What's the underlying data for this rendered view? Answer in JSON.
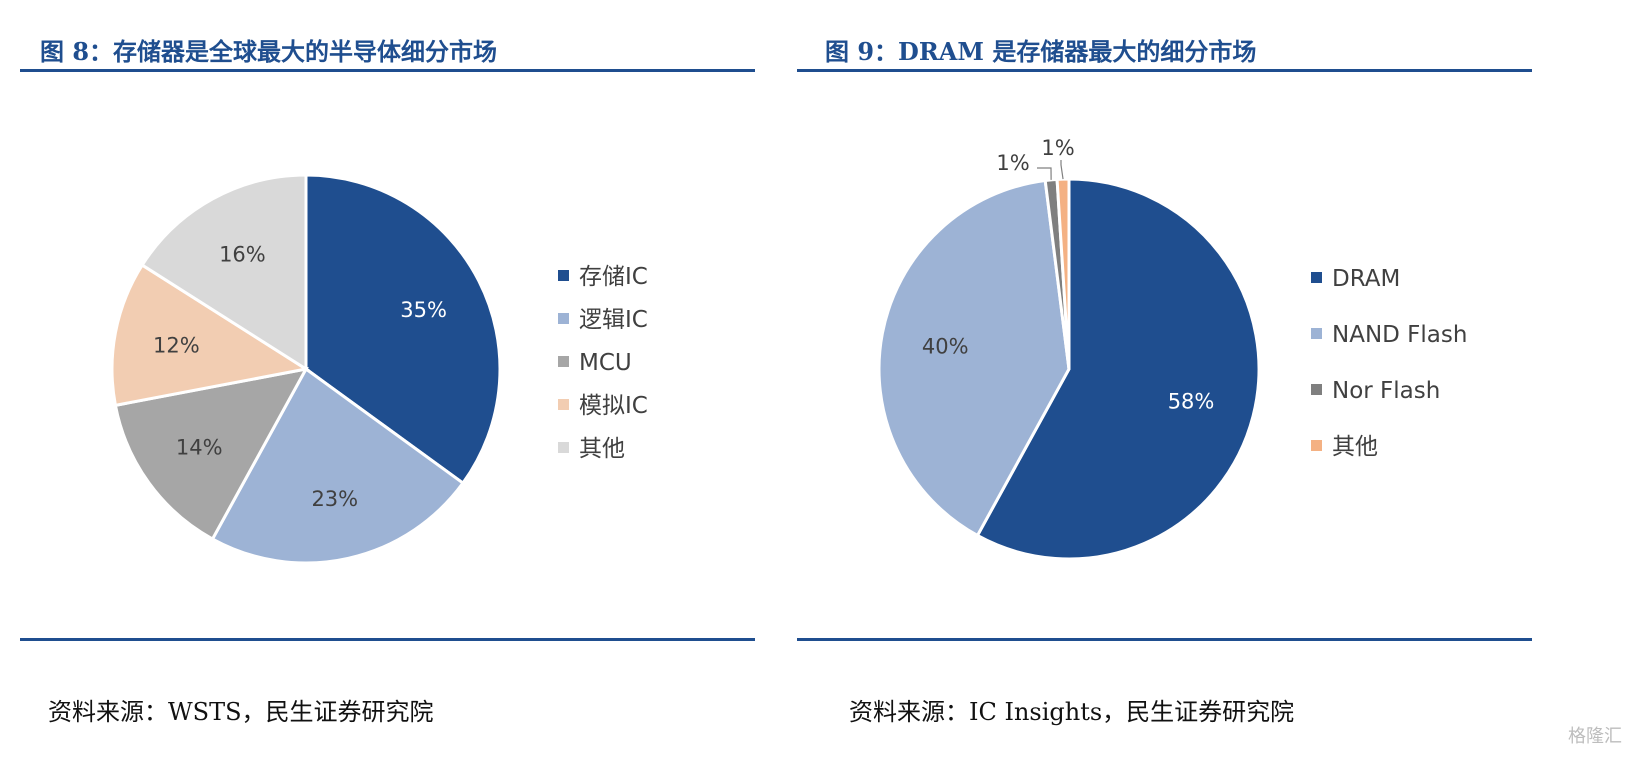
{
  "panels": [
    {
      "title": "图 8：存储器是全球最大的半导体细分市场",
      "source": "资料来源：WSTS，民生证券研究院"
    },
    {
      "title": "图 9：DRAM 是存储器最大的细分市场",
      "source": "资料来源：IC Insights，民生证券研究院"
    }
  ],
  "chart_data": [
    {
      "type": "pie",
      "title": "",
      "legend_position": "right",
      "categories": [
        "存储IC",
        "逻辑IC",
        "MCU",
        "模拟IC",
        "其他"
      ],
      "values": [
        35,
        23,
        14,
        12,
        16
      ],
      "labels": [
        "35%",
        "23%",
        "14%",
        "12%",
        "16%"
      ],
      "colors": [
        "#1f4e8f",
        "#9db3d5",
        "#a6a6a6",
        "#f2cdb2",
        "#d9d9d9"
      ]
    },
    {
      "type": "pie",
      "title": "",
      "legend_position": "right",
      "categories": [
        "DRAM",
        "NAND Flash",
        "Nor Flash",
        "其他"
      ],
      "values": [
        58,
        40,
        1,
        1
      ],
      "labels": [
        "58%",
        "40%",
        "1%",
        "1%"
      ],
      "colors": [
        "#1f4e8f",
        "#9db3d5",
        "#7f7f7f",
        "#f4b183"
      ]
    }
  ],
  "watermark": "格隆汇"
}
